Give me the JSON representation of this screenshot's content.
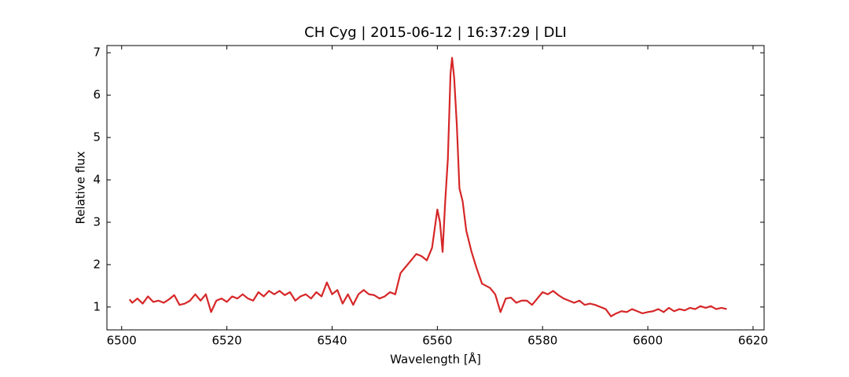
{
  "chart_data": {
    "type": "line",
    "title": "CH Cyg | 2015-06-12 | 16:37:29 | DLI",
    "xlabel": "Wavelength [Å]",
    "ylabel": "Relative flux",
    "color": "#d62728",
    "xlim": [
      6497.2,
      6622.1
    ],
    "ylim": [
      0.46,
      7.17
    ],
    "xticks": [
      6500,
      6520,
      6540,
      6560,
      6580,
      6600,
      6620
    ],
    "yticks": [
      1,
      2,
      3,
      4,
      5,
      6,
      7
    ],
    "x": [
      6501.5,
      6502,
      6503,
      6504,
      6505,
      6506,
      6507,
      6508,
      6509,
      6510,
      6511,
      6512,
      6513,
      6514,
      6515,
      6516,
      6517,
      6518,
      6519,
      6520,
      6521,
      6522,
      6523,
      6524,
      6525,
      6526,
      6527,
      6528,
      6529,
      6530,
      6531,
      6532,
      6533,
      6534,
      6535,
      6536,
      6537,
      6538,
      6539,
      6540,
      6541,
      6542,
      6543,
      6544,
      6545,
      6546,
      6547,
      6548,
      6549,
      6550,
      6551,
      6552,
      6553,
      6554,
      6555,
      6556,
      6557,
      6558,
      6559,
      6560,
      6560.5,
      6561,
      6561.5,
      6562,
      6562.5,
      6562.8,
      6563.2,
      6563.7,
      6564.2,
      6564.8,
      6565.5,
      6566.5,
      6567.5,
      6568.5,
      6570,
      6571,
      6572,
      6573,
      6574,
      6575,
      6576,
      6577,
      6578,
      6579,
      6580,
      6581,
      6582,
      6583,
      6584,
      6585,
      6586,
      6587,
      6588,
      6589,
      6590,
      6591,
      6592,
      6593,
      6594,
      6595,
      6596,
      6597,
      6598,
      6599,
      6600,
      6601,
      6602,
      6603,
      6604,
      6605,
      6606,
      6607,
      6608,
      6609,
      6610,
      6611,
      6612,
      6613,
      6614,
      6615
    ],
    "values": [
      1.18,
      1.1,
      1.2,
      1.08,
      1.25,
      1.12,
      1.15,
      1.1,
      1.18,
      1.28,
      1.05,
      1.08,
      1.15,
      1.3,
      1.15,
      1.3,
      0.88,
      1.15,
      1.2,
      1.12,
      1.25,
      1.2,
      1.3,
      1.2,
      1.15,
      1.35,
      1.25,
      1.38,
      1.3,
      1.38,
      1.28,
      1.35,
      1.15,
      1.25,
      1.3,
      1.2,
      1.35,
      1.25,
      1.58,
      1.3,
      1.4,
      1.08,
      1.3,
      1.05,
      1.3,
      1.4,
      1.3,
      1.28,
      1.2,
      1.25,
      1.35,
      1.3,
      1.8,
      1.95,
      2.1,
      2.25,
      2.2,
      2.1,
      2.4,
      3.3,
      3.0,
      2.3,
      3.5,
      4.5,
      6.5,
      6.88,
      6.4,
      5.3,
      3.8,
      3.5,
      2.8,
      2.3,
      1.9,
      1.55,
      1.45,
      1.3,
      0.88,
      1.2,
      1.22,
      1.1,
      1.15,
      1.15,
      1.05,
      1.2,
      1.35,
      1.3,
      1.38,
      1.28,
      1.2,
      1.15,
      1.1,
      1.15,
      1.05,
      1.08,
      1.05,
      1.0,
      0.95,
      0.78,
      0.85,
      0.9,
      0.88,
      0.95,
      0.9,
      0.85,
      0.88,
      0.9,
      0.95,
      0.88,
      0.98,
      0.9,
      0.95,
      0.92,
      0.98,
      0.95,
      1.02,
      0.98,
      1.02,
      0.95,
      0.98,
      0.95
    ]
  }
}
